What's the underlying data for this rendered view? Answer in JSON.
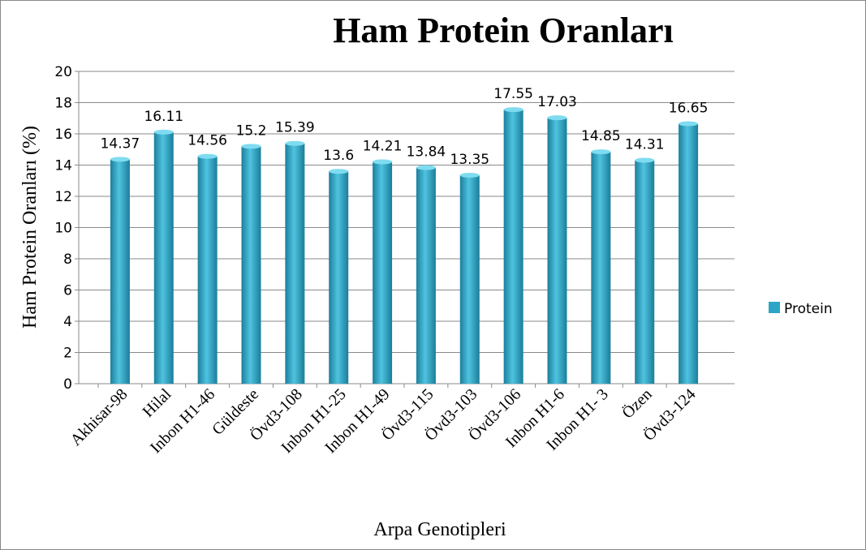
{
  "chart_data": {
    "type": "bar",
    "title": "Ham Protein Oranları",
    "x_label": "Arpa Genotipleri",
    "y_label": "Ham Protein Oranları (%)",
    "categories": [
      "Akhisar-98",
      "Hilal",
      "Inbon H1-46",
      "Güldeste",
      "Övd3-108",
      "Inbon H1-25",
      "Inbon H1-49",
      "Övd3-115",
      "Övd3-103",
      "Övd3-106",
      "Inbon H1-6",
      "Inbon H1- 3",
      "Özen",
      "Övd3-124"
    ],
    "series": [
      {
        "name": "Protein",
        "color": "#2ba6c6",
        "values": [
          14.37,
          16.11,
          14.56,
          15.2,
          15.39,
          13.6,
          14.21,
          13.84,
          13.35,
          17.55,
          17.03,
          14.85,
          14.31,
          16.65
        ]
      }
    ],
    "ylim": [
      0,
      20
    ],
    "yticks": [
      0,
      2,
      4,
      6,
      8,
      10,
      12,
      14,
      16,
      18,
      20
    ],
    "grid": true,
    "legend": "right"
  }
}
